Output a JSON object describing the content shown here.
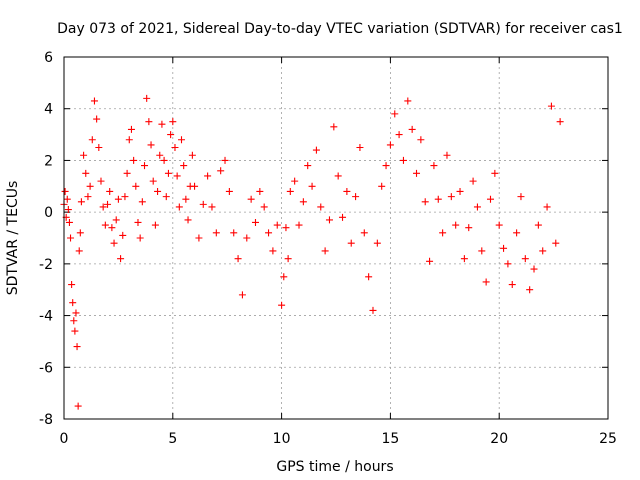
{
  "chart_data": {
    "type": "scatter",
    "title": "Day 073 of 2021, Sidereal Day-to-day VTEC variation (SDTVAR) for receiver cas1",
    "xlabel": "GPS time / hours",
    "ylabel": "SDTVAR / TECUs",
    "xlim": [
      0,
      25
    ],
    "ylim": [
      -8,
      6
    ],
    "xticks": [
      0,
      5,
      10,
      15,
      20,
      25
    ],
    "yticks": [
      -8,
      -6,
      -4,
      -2,
      0,
      2,
      4,
      6
    ],
    "xtick_labels": [
      "0",
      "5",
      "10",
      "15",
      "20",
      "25"
    ],
    "ytick_labels": [
      "-8",
      "-6",
      "-4",
      "-2",
      "0",
      "2",
      "4",
      "6"
    ],
    "grid": true,
    "marker": "plus",
    "color": "#ff0000",
    "series": [
      {
        "name": "SDTVAR",
        "x": [
          0.0,
          0.05,
          0.1,
          0.15,
          0.2,
          0.25,
          0.3,
          0.35,
          0.4,
          0.45,
          0.5,
          0.55,
          0.6,
          0.65,
          0.7,
          0.75,
          0.8,
          0.9,
          1.0,
          1.1,
          1.2,
          1.3,
          1.4,
          1.5,
          1.6,
          1.7,
          1.8,
          1.9,
          2.0,
          2.1,
          2.2,
          2.3,
          2.4,
          2.5,
          2.6,
          2.7,
          2.8,
          2.9,
          3.0,
          3.1,
          3.2,
          3.3,
          3.4,
          3.5,
          3.6,
          3.7,
          3.8,
          3.9,
          4.0,
          4.1,
          4.2,
          4.3,
          4.4,
          4.5,
          4.6,
          4.7,
          4.8,
          4.9,
          5.0,
          5.1,
          5.2,
          5.3,
          5.4,
          5.5,
          5.6,
          5.7,
          5.8,
          5.9,
          6.0,
          6.2,
          6.4,
          6.6,
          6.8,
          7.0,
          7.2,
          7.4,
          7.6,
          7.8,
          8.0,
          8.2,
          8.4,
          8.6,
          8.8,
          9.0,
          9.2,
          9.4,
          9.6,
          9.8,
          10.0,
          10.1,
          10.2,
          10.3,
          10.4,
          10.6,
          10.8,
          11.0,
          11.2,
          11.4,
          11.6,
          11.8,
          12.0,
          12.2,
          12.4,
          12.6,
          12.8,
          13.0,
          13.2,
          13.4,
          13.6,
          13.8,
          14.0,
          14.2,
          14.4,
          14.6,
          14.8,
          15.0,
          15.2,
          15.4,
          15.6,
          15.8,
          16.0,
          16.2,
          16.4,
          16.6,
          16.8,
          17.0,
          17.2,
          17.4,
          17.6,
          17.8,
          18.0,
          18.2,
          18.4,
          18.6,
          18.8,
          19.0,
          19.2,
          19.4,
          19.6,
          19.8,
          20.0,
          20.2,
          20.4,
          20.6,
          20.8,
          21.0,
          21.2,
          21.4,
          21.6,
          21.8,
          22.0,
          22.2,
          22.4,
          22.6,
          22.8
        ],
        "y": [
          0.3,
          0.8,
          -0.2,
          0.5,
          0.1,
          -0.4,
          -1.0,
          -2.8,
          -3.5,
          -4.2,
          -4.6,
          -3.9,
          -5.2,
          -7.5,
          -1.5,
          -0.8,
          0.4,
          2.2,
          1.5,
          0.6,
          1.0,
          2.8,
          4.3,
          3.6,
          2.5,
          1.2,
          0.2,
          -0.5,
          0.3,
          0.8,
          -0.6,
          -1.2,
          -0.3,
          0.5,
          -1.8,
          -0.9,
          0.6,
          1.5,
          2.8,
          3.2,
          2.0,
          1.0,
          -0.4,
          -1.0,
          0.4,
          1.8,
          4.4,
          3.5,
          2.6,
          1.2,
          -0.5,
          0.8,
          2.2,
          3.4,
          2.0,
          0.6,
          1.5,
          3.0,
          3.5,
          2.5,
          1.4,
          0.2,
          2.8,
          1.8,
          0.5,
          -0.3,
          1.0,
          2.2,
          1.0,
          -1.0,
          0.3,
          1.4,
          0.2,
          -0.8,
          1.6,
          2.0,
          0.8,
          -0.8,
          -1.8,
          -3.2,
          -1.0,
          0.5,
          -0.4,
          0.8,
          0.2,
          -0.8,
          -1.5,
          -0.5,
          -3.6,
          -2.5,
          -0.6,
          -1.8,
          0.8,
          1.2,
          -0.5,
          0.4,
          1.8,
          1.0,
          2.4,
          0.2,
          -1.5,
          -0.3,
          3.3,
          1.4,
          -0.2,
          0.8,
          -1.2,
          0.6,
          2.5,
          -0.8,
          -2.5,
          -3.8,
          -1.2,
          1.0,
          1.8,
          2.6,
          3.8,
          3.0,
          2.0,
          4.3,
          3.2,
          1.5,
          2.8,
          0.4,
          -1.9,
          1.8,
          0.5,
          -0.8,
          2.2,
          0.6,
          -0.5,
          0.8,
          -1.8,
          -0.6,
          1.2,
          0.2,
          -1.5,
          -2.7,
          0.5,
          1.5,
          -0.5,
          -1.4,
          -2.0,
          -2.8,
          -0.8,
          0.6,
          -1.8,
          -3.0,
          -2.2,
          -0.5,
          -1.5,
          0.2,
          4.1,
          -1.2,
          3.5
        ]
      }
    ]
  }
}
